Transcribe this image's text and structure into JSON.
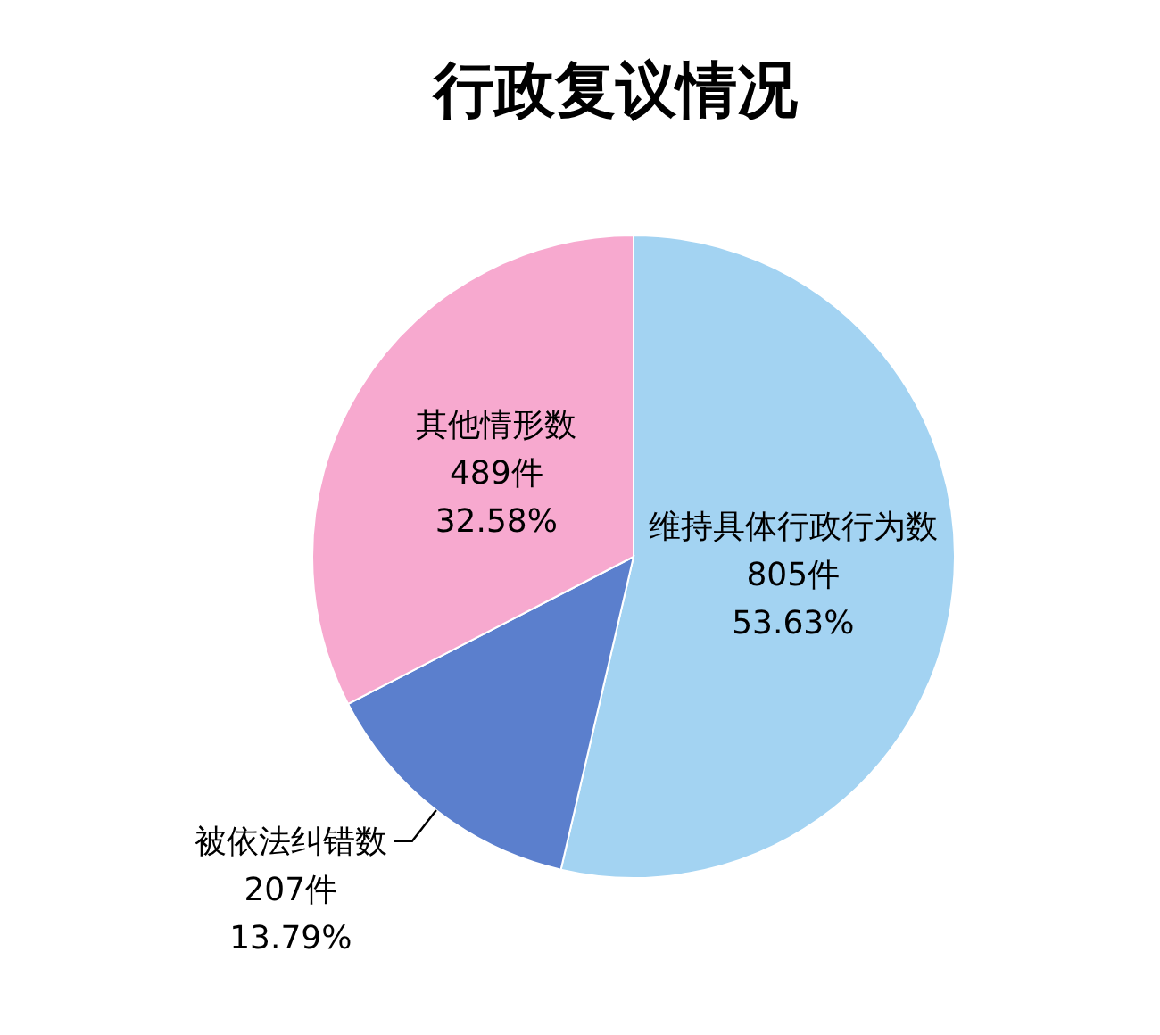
{
  "chart_data": {
    "type": "pie",
    "title": "行政复议情况",
    "categories": [
      "维持具体行政行为数",
      "被依法纠错数",
      "其他情形数"
    ],
    "values": [
      805,
      207,
      489
    ],
    "value_labels": [
      "805件\n53.63%",
      "207件\n13.79%",
      "489件\n32.58%"
    ],
    "colors": [
      "#a3d3f2",
      "#5b7fcd",
      "#f7a9cf"
    ]
  }
}
